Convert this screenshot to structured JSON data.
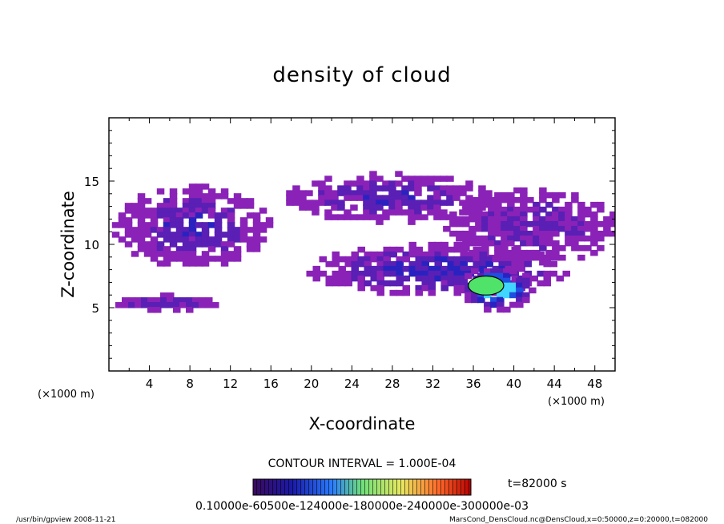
{
  "chart_data": {
    "type": "heatmap",
    "title": "density of cloud",
    "xlabel": "X-coordinate",
    "ylabel": "Z-coordinate",
    "x_unit": "(×1000 m)",
    "z_unit": "(×1000 m)",
    "xlim": [
      0,
      50
    ],
    "ylim": [
      0,
      20
    ],
    "x_ticks": [
      "4",
      "8",
      "12",
      "16",
      "20",
      "24",
      "28",
      "32",
      "36",
      "40",
      "44",
      "48"
    ],
    "y_ticks": [
      "5",
      "10",
      "15"
    ],
    "contour_interval_label": "CONTOUR INTERVAL = 1.000E-04",
    "time_label": "t=82000 s",
    "colorbar_label": "0.10000e-60500e-124000e-180000e-240000e-300000e-03",
    "grid": false,
    "cloud_regions": [
      {
        "x": [
          0.3,
          15.5
        ],
        "z": [
          8.5,
          14.8
        ],
        "level": 5e-05
      },
      {
        "x": [
          17.5,
          37.5
        ],
        "z": [
          12.0,
          15.8
        ],
        "level": 5e-05
      },
      {
        "x": [
          33.0,
          50.0
        ],
        "z": [
          8.7,
          14.5
        ],
        "level": 4e-05
      },
      {
        "x": [
          19.5,
          45.0
        ],
        "z": [
          6.2,
          10.2
        ],
        "level": 6e-05
      },
      {
        "x": [
          34.5,
          41.5
        ],
        "z": [
          5.0,
          8.5
        ],
        "level": 0.00012
      },
      {
        "x": [
          0.0,
          10.5
        ],
        "z": [
          5.0,
          6.2
        ],
        "level": 5e-05
      }
    ],
    "contour_peak": {
      "x": [
        35.5,
        39.0
      ],
      "z": [
        6.0,
        7.5
      ],
      "level": 0.0001
    }
  },
  "footer": {
    "left": "/usr/bin/gpview   2008-11-21",
    "right": "MarsCond_DensCloud.nc@DensCloud,x=0:50000,z=0:20000,t=082000"
  }
}
